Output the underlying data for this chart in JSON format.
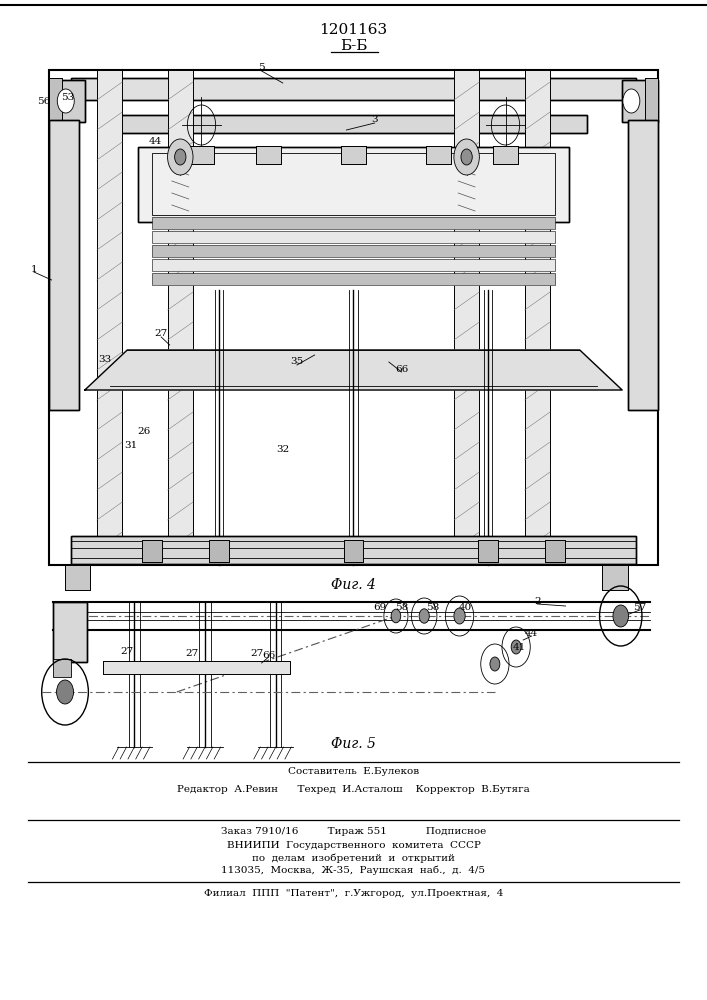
{
  "patent_number": "1201163",
  "section_label": "Б-Б",
  "fig4_label": "Φиг. 4",
  "fig5_label": "Φиг. 5",
  "bg_color": "#ffffff",
  "line_color": "#000000",
  "footer_lines": [
    "Составитель  Е.Булеков",
    "Редактор  А.Ревин      Техред  И.Асталош    Корректор  В.Бутяга",
    "Заказ 7910/16         Тираж 551            Подписное",
    "ВНИИПИ  Государственного  комитета  СССР",
    "по  делам  изобретений  и  открытий",
    "113035,  Москва,  Ж-35,  Раушская  наб.,  д.  4/5",
    "Филиал  ППП  \"Патент\",  г.Ужгород,  ул.Проектная,  4"
  ]
}
